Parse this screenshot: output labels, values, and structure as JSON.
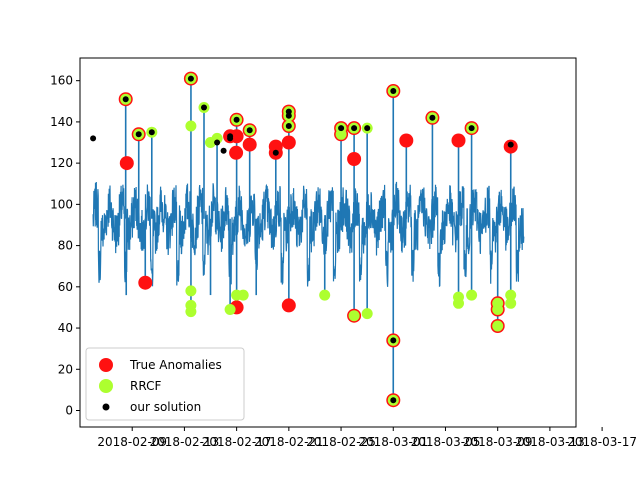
{
  "chart_data": {
    "type": "scatter",
    "x_axis": {
      "kind": "date",
      "range": [
        "2018-02-05",
        "2018-03-15"
      ],
      "ticks": [
        "2018-02-09",
        "2018-02-13",
        "2018-02-17",
        "2018-02-21",
        "2018-02-25",
        "2018-03-01",
        "2018-03-05",
        "2018-03-09",
        "2018-03-13",
        "2018-03-17"
      ]
    },
    "y_axis": {
      "range": [
        -8,
        171
      ],
      "ticks": [
        0,
        20,
        40,
        60,
        80,
        100,
        120,
        140,
        160
      ]
    },
    "grid": false,
    "colors": {
      "signal": "#1f77b4",
      "true_anomalies": "#ff1111",
      "rrcf": "#adff2f",
      "our_solution": "#000000"
    },
    "series": [
      {
        "name": "True Anomalies",
        "points": [
          [
            "2018-02-08 12:00",
            151
          ],
          [
            "2018-02-08 14:00",
            120
          ],
          [
            "2018-02-09 12:00",
            134
          ],
          [
            "2018-02-10 00:00",
            62
          ],
          [
            "2018-02-13 12:00",
            161
          ],
          [
            "2018-02-16 12:00",
            133
          ],
          [
            "2018-02-16 23:00",
            125
          ],
          [
            "2018-02-17 00:00",
            50
          ],
          [
            "2018-02-17 00:00",
            141
          ],
          [
            "2018-02-17 00:00",
            133
          ],
          [
            "2018-02-18 00:00",
            136
          ],
          [
            "2018-02-18 00:00",
            129
          ],
          [
            "2018-02-20 00:00",
            125
          ],
          [
            "2018-02-20 00:00",
            128
          ],
          [
            "2018-02-21 00:00",
            145
          ],
          [
            "2018-02-21 00:00",
            143
          ],
          [
            "2018-02-21 00:00",
            138
          ],
          [
            "2018-02-21 00:00",
            130
          ],
          [
            "2018-02-21 00:00",
            51
          ],
          [
            "2018-02-25 00:00",
            137
          ],
          [
            "2018-02-25 00:00",
            134
          ],
          [
            "2018-02-26 00:00",
            137
          ],
          [
            "2018-02-26 00:00",
            122
          ],
          [
            "2018-02-26 00:00",
            46
          ],
          [
            "2018-03-01 00:00",
            155
          ],
          [
            "2018-03-01 00:00",
            34
          ],
          [
            "2018-03-01 00:00",
            5
          ],
          [
            "2018-03-02 00:00",
            131
          ],
          [
            "2018-03-04 00:00",
            142
          ],
          [
            "2018-03-06 00:00",
            131
          ],
          [
            "2018-03-07 00:00",
            137
          ],
          [
            "2018-03-09 00:00",
            52
          ],
          [
            "2018-03-09 00:00",
            49
          ],
          [
            "2018-03-09 00:00",
            41
          ],
          [
            "2018-03-10 00:00",
            128
          ]
        ]
      },
      {
        "name": "RRCF",
        "points": [
          [
            "2018-02-08 12:00",
            151
          ],
          [
            "2018-02-09 12:00",
            134
          ],
          [
            "2018-02-10 12:00",
            135
          ],
          [
            "2018-02-13 12:00",
            161
          ],
          [
            "2018-02-13 12:00",
            138
          ],
          [
            "2018-02-13 12:00",
            58
          ],
          [
            "2018-02-13 12:00",
            51
          ],
          [
            "2018-02-13 12:00",
            48
          ],
          [
            "2018-02-14 12:00",
            147
          ],
          [
            "2018-02-15 00:00",
            130
          ],
          [
            "2018-02-15 12:00",
            132
          ],
          [
            "2018-02-16 12:00",
            49
          ],
          [
            "2018-02-17 00:00",
            141
          ],
          [
            "2018-02-17 00:00",
            56
          ],
          [
            "2018-02-17 12:00",
            56
          ],
          [
            "2018-02-18 00:00",
            136
          ],
          [
            "2018-02-21 00:00",
            145
          ],
          [
            "2018-02-21 00:00",
            143
          ],
          [
            "2018-02-21 00:00",
            138
          ],
          [
            "2018-02-23 18:00",
            56
          ],
          [
            "2018-02-25 00:00",
            137
          ],
          [
            "2018-02-25 00:00",
            134
          ],
          [
            "2018-02-26 00:00",
            137
          ],
          [
            "2018-02-26 00:00",
            46
          ],
          [
            "2018-02-27 00:00",
            137
          ],
          [
            "2018-02-27 00:00",
            47
          ],
          [
            "2018-03-01 00:00",
            155
          ],
          [
            "2018-03-01 00:00",
            34
          ],
          [
            "2018-03-01 00:00",
            5
          ],
          [
            "2018-03-04 00:00",
            142
          ],
          [
            "2018-03-06 00:00",
            55
          ],
          [
            "2018-03-06 00:00",
            52
          ],
          [
            "2018-03-07 00:00",
            137
          ],
          [
            "2018-03-07 00:00",
            56
          ],
          [
            "2018-03-09 00:00",
            52
          ],
          [
            "2018-03-09 00:00",
            49
          ],
          [
            "2018-03-09 00:00",
            41
          ],
          [
            "2018-03-10 00:00",
            56
          ],
          [
            "2018-03-10 00:00",
            52
          ]
        ]
      },
      {
        "name": "our solution",
        "points": [
          [
            "2018-02-06 00:00",
            132
          ],
          [
            "2018-02-08 12:00",
            151
          ],
          [
            "2018-02-09 12:00",
            134
          ],
          [
            "2018-02-10 12:00",
            135
          ],
          [
            "2018-02-13 12:00",
            161
          ],
          [
            "2018-02-14 12:00",
            147
          ],
          [
            "2018-02-15 12:00",
            130
          ],
          [
            "2018-02-16 00:00",
            126
          ],
          [
            "2018-02-16 12:00",
            132
          ],
          [
            "2018-02-16 12:00",
            133
          ],
          [
            "2018-02-17 00:00",
            141
          ],
          [
            "2018-02-18 00:00",
            136
          ],
          [
            "2018-02-20 00:00",
            125
          ],
          [
            "2018-02-21 00:00",
            145
          ],
          [
            "2018-02-21 00:00",
            143
          ],
          [
            "2018-02-21 00:00",
            138
          ],
          [
            "2018-02-25 00:00",
            137
          ],
          [
            "2018-02-26 00:00",
            137
          ],
          [
            "2018-02-27 00:00",
            137
          ],
          [
            "2018-03-01 00:00",
            155
          ],
          [
            "2018-03-01 00:00",
            34
          ],
          [
            "2018-03-01 00:00",
            5
          ],
          [
            "2018-03-04 00:00",
            142
          ],
          [
            "2018-03-07 00:00",
            137
          ],
          [
            "2018-03-10 00:00",
            129
          ]
        ]
      }
    ],
    "signal": {
      "x_start": "2018-02-06 00:00",
      "x_end": "2018-03-11 00:00",
      "baseline": 93,
      "envelope": [
        78,
        108
      ],
      "spikes": [
        [
          "2018-02-08 12:00",
          151
        ],
        [
          "2018-02-08 13:00",
          56
        ],
        [
          "2018-02-09 12:00",
          134
        ],
        [
          "2018-02-10 00:00",
          62
        ],
        [
          "2018-02-10 12:00",
          135
        ],
        [
          "2018-02-13 12:00",
          161
        ],
        [
          "2018-02-13 12:00",
          48
        ],
        [
          "2018-02-14 12:00",
          147
        ],
        [
          "2018-02-15 00:00",
          56
        ],
        [
          "2018-02-15 12:00",
          132
        ],
        [
          "2018-02-16 12:00",
          49
        ],
        [
          "2018-02-17 00:00",
          141
        ],
        [
          "2018-02-17 00:00",
          50
        ],
        [
          "2018-02-18 00:00",
          136
        ],
        [
          "2018-02-18 12:00",
          56
        ],
        [
          "2018-02-20 00:00",
          128
        ],
        [
          "2018-02-21 00:00",
          145
        ],
        [
          "2018-02-21 00:00",
          51
        ],
        [
          "2018-02-23 18:00",
          56
        ],
        [
          "2018-02-25 00:00",
          137
        ],
        [
          "2018-02-26 00:00",
          137
        ],
        [
          "2018-02-26 00:00",
          46
        ],
        [
          "2018-02-27 00:00",
          137
        ],
        [
          "2018-02-27 00:00",
          47
        ],
        [
          "2018-03-01 00:00",
          155
        ],
        [
          "2018-03-01 00:00",
          5
        ],
        [
          "2018-03-02 00:00",
          131
        ],
        [
          "2018-03-04 00:00",
          142
        ],
        [
          "2018-03-06 00:00",
          131
        ],
        [
          "2018-03-06 00:00",
          52
        ],
        [
          "2018-03-07 00:00",
          137
        ],
        [
          "2018-03-07 00:00",
          56
        ],
        [
          "2018-03-09 00:00",
          41
        ],
        [
          "2018-03-10 00:00",
          129
        ],
        [
          "2018-03-10 00:00",
          52
        ]
      ]
    },
    "legend": {
      "placement": "lower-left",
      "entries": [
        "True Anomalies",
        "RRCF",
        "our solution"
      ]
    }
  }
}
